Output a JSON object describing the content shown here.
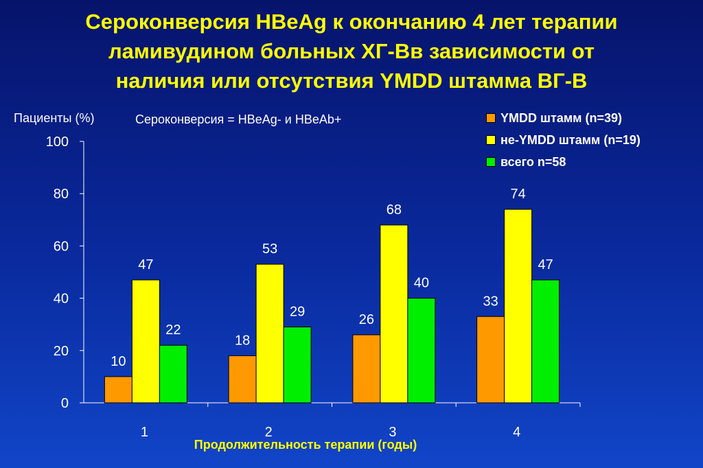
{
  "title_lines": [
    "Сероконверсия HBeAg к окончанию 4 лет терапии",
    "ламивудином больных ХГ-Вв зависимости от",
    "наличия или отсутствия YMDD штамма ВГ-В"
  ],
  "ylabel": "Пациенты (%)",
  "subtitle": "Сероконверсия = HBeAg- и HBeAb+",
  "xlabel": "Продолжительность терапии (годы)",
  "colors": {
    "title": "#ffff00",
    "orange": "#ff9900",
    "yellow": "#ffff00",
    "green": "#00ee00"
  },
  "chart_data": {
    "type": "bar",
    "categories": [
      "1",
      "2",
      "3",
      "4"
    ],
    "series": [
      {
        "name": "YMDD штамм (n=39)",
        "color": "#ff9900",
        "values": [
          10,
          18,
          26,
          33
        ]
      },
      {
        "name": "не-YMDD штамм (n=19)",
        "color": "#ffff00",
        "values": [
          47,
          53,
          68,
          74
        ]
      },
      {
        "name": "всего n=58",
        "color": "#00ee00",
        "values": [
          22,
          29,
          40,
          47
        ]
      }
    ],
    "title": "Сероконверсия HBeAg к окончанию 4 лет терапии ламивудином больных ХГ-Вв зависимости от наличия или отсутствия YMDD штамма ВГ-В",
    "xlabel": "Продолжительность терапии (годы)",
    "ylabel": "Пациенты (%)",
    "ylim": [
      0,
      100
    ],
    "yticks": [
      "0",
      "20",
      "40",
      "60",
      "80",
      "100"
    ],
    "legend_position": "top-right",
    "grid": false
  }
}
